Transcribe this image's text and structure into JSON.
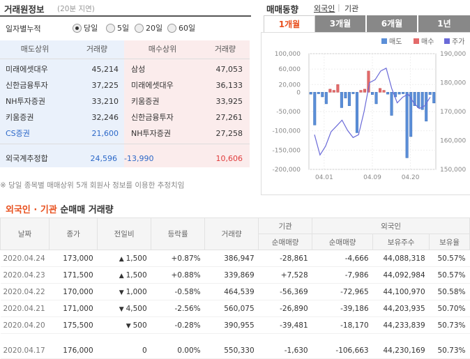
{
  "broker": {
    "title": "거래원정보",
    "delay": "(20분 지연)",
    "mode_label": "일자별누적",
    "radios": [
      {
        "label": "당일",
        "checked": true
      },
      {
        "label": "5일",
        "checked": false
      },
      {
        "label": "20일",
        "checked": false
      },
      {
        "label": "60일",
        "checked": false
      }
    ],
    "headers": {
      "sell": "매도상위",
      "sell_vol": "거래량",
      "buy": "매수상위",
      "buy_vol": "거래량"
    },
    "rows": [
      {
        "sell": "미래에셋대우",
        "sell_vol": "45,214",
        "buy": "삼성",
        "buy_vol": "47,053"
      },
      {
        "sell": "신한금융투자",
        "sell_vol": "37,225",
        "buy": "미래에셋대우",
        "buy_vol": "36,133"
      },
      {
        "sell": "NH투자증권",
        "sell_vol": "33,210",
        "buy": "키움증권",
        "buy_vol": "33,925"
      },
      {
        "sell": "키움증권",
        "sell_vol": "32,246",
        "buy": "신한금융투자",
        "buy_vol": "27,261"
      },
      {
        "sell": "CS증권",
        "sell_vol": "21,600",
        "buy": "NH투자증권",
        "buy_vol": "27,258"
      }
    ],
    "foreign": {
      "label": "외국계추정합",
      "sell": "24,596",
      "net": "-13,990",
      "buy": "10,606"
    },
    "note": "※ 당일 종목별 매매상위 5개 회원사 정보를 이용한 추정치임"
  },
  "trend": {
    "title": "매매동향",
    "links": [
      "외국인",
      "기관"
    ],
    "tabs": [
      {
        "label": "1개월",
        "active": true
      },
      {
        "label": "3개월",
        "active": false
      },
      {
        "label": "6개월",
        "active": false
      },
      {
        "label": "1년",
        "active": false
      }
    ],
    "legend": [
      "매도",
      "매수",
      "주가"
    ]
  },
  "chart_data": {
    "type": "bar",
    "legend": [
      "매도",
      "매수",
      "주가"
    ],
    "x_ticks": [
      "04.01",
      "04.09",
      "04.20"
    ],
    "y_left_ticks": [
      "100,000",
      "60,000",
      "20,000",
      "0",
      "-50,000",
      "-100,000",
      "-150,000",
      "-200,000"
    ],
    "y_right_ticks": [
      "190,000",
      "180,000",
      "170,000",
      "160,000",
      "150,000"
    ],
    "ylim_left": [
      -200000,
      100000
    ],
    "ylim_right": [
      150000,
      190000
    ],
    "net_values": [
      -5000,
      -85000,
      -4000,
      -12000,
      -30000,
      8000,
      5000,
      20000,
      -40000,
      -15000,
      -35000,
      -4000,
      -105000,
      5000,
      8000,
      55000,
      -6000,
      -30000,
      10000,
      5000,
      -5000,
      -60000,
      -12000,
      -5000,
      -4000,
      -170000,
      -115000,
      -35000,
      -40000,
      -45000,
      -75000,
      -6000,
      -28000
    ],
    "price_values": [
      162000,
      155000,
      158000,
      163000,
      165000,
      167000,
      163500,
      161000,
      162000,
      170000,
      180000,
      181000,
      184000,
      185000,
      178000,
      173000,
      175000,
      176000,
      173000,
      171000,
      172000,
      175000
    ]
  },
  "deals": {
    "title_a": "외국인 · 기관",
    "title_b": "순매매 거래량",
    "headers": {
      "date": "날짜",
      "close": "종가",
      "change": "전일비",
      "rate": "등락률",
      "volume": "거래량",
      "inst": "기관",
      "inst_net": "순매매량",
      "frn": "외국인",
      "frn_net": "순매매량",
      "frn_hold": "보유주수",
      "frn_ratio": "보유율"
    },
    "rows": [
      {
        "date": "2020.04.24",
        "close": "173,000",
        "dir": "up",
        "change": "1,500",
        "rate": "+0.87%",
        "volume": "386,947",
        "inst_net": "-28,861",
        "frn_net": "-4,666",
        "hold": "44,088,318",
        "ratio": "50.57%"
      },
      {
        "date": "2020.04.23",
        "close": "171,500",
        "dir": "up",
        "change": "1,500",
        "rate": "+0.88%",
        "volume": "339,869",
        "inst_net": "+7,528",
        "frn_net": "-7,986",
        "hold": "44,092,984",
        "ratio": "50.57%"
      },
      {
        "date": "2020.04.22",
        "close": "170,000",
        "dir": "dn",
        "change": "1,000",
        "rate": "-0.58%",
        "volume": "464,539",
        "inst_net": "-56,369",
        "frn_net": "-72,965",
        "hold": "44,100,970",
        "ratio": "50.58%"
      },
      {
        "date": "2020.04.21",
        "close": "171,000",
        "dir": "dn",
        "change": "4,500",
        "rate": "-2.56%",
        "volume": "560,075",
        "inst_net": "-26,890",
        "frn_net": "-39,186",
        "hold": "44,203,935",
        "ratio": "50.70%"
      },
      {
        "date": "2020.04.20",
        "close": "175,500",
        "dir": "dn",
        "change": "500",
        "rate": "-0.28%",
        "volume": "390,955",
        "inst_net": "-39,481",
        "frn_net": "-18,170",
        "hold": "44,233,839",
        "ratio": "50.73%"
      },
      {
        "date": "2020.04.17",
        "close": "176,000",
        "dir": "none",
        "change": "0",
        "rate": "0.00%",
        "volume": "550,330",
        "inst_net": "-1,630",
        "frn_net": "-106,663",
        "hold": "44,230,169",
        "ratio": "50.73%"
      }
    ]
  },
  "colors": {
    "up": "#e03b3b",
    "down": "#2c68c8",
    "sell_bg": "#eaf1fb",
    "buy_bg": "#fbecec",
    "bar_neg": "#5b8fd8",
    "bar_pos": "#e36a6a",
    "price_line": "#6a6ad8",
    "tab_active": "#e8501e"
  }
}
